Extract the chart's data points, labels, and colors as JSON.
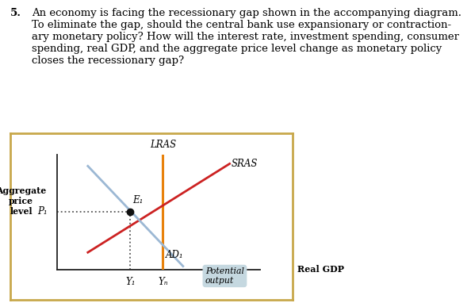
{
  "num_label": "5.",
  "title_text": "An economy is facing the recessionary gap shown in the accompanying diagram.\nTo eliminate the gap, should the central bank use expansionary or contraction-\nary monetary policy? How will the interest rate, investment spending, consumer\nspending, real GDP, and the aggregate price level change as monetary policy\ncloses the recessionary gap?",
  "ylabel": "Aggregate\nprice\nlevel",
  "xlabel": "Real GDP",
  "xlim": [
    0,
    10
  ],
  "ylim": [
    0,
    10
  ],
  "lras_x": 5.2,
  "lras_color": "#E8820C",
  "sras_x0": 1.5,
  "sras_y0": 1.5,
  "sras_x1": 8.5,
  "sras_y1": 9.2,
  "sras_color": "#CC2222",
  "ad_x0": 1.5,
  "ad_y0": 9.0,
  "ad_x1": 6.2,
  "ad_y1": 0.3,
  "ad_color": "#9CB8D4",
  "e1_x": 3.6,
  "e1_y": 5.05,
  "p1_y": 5.05,
  "y1_x": 3.6,
  "yp_x": 5.2,
  "dot_color": "#111111",
  "dotted_color": "#555555",
  "border_color": "#C8A84B",
  "potential_label": "Potential\noutput",
  "potential_box_color": "#C5D8E0",
  "lras_label": "LRAS",
  "sras_label": "SRAS",
  "ad_label": "AD₁",
  "e1_label": "E₁",
  "p1_label": "P₁",
  "y1_label": "Y₁",
  "yp_label": "Yₙ",
  "real_gdp_label": "Real GDP",
  "fig_width": 5.94,
  "fig_height": 3.82,
  "dpi": 100
}
